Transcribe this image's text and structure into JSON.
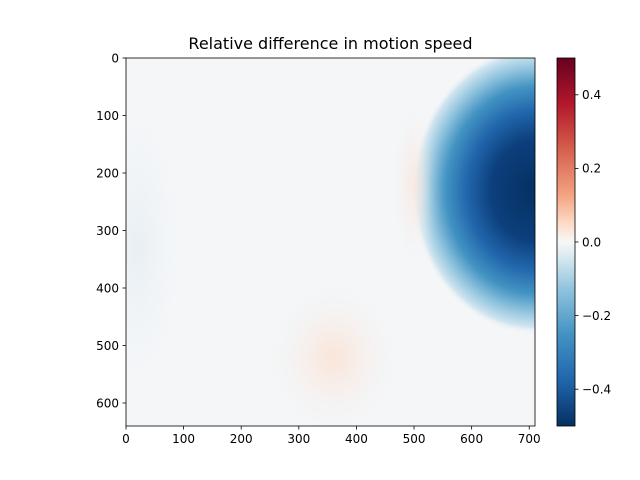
{
  "chart_data": {
    "type": "heatmap",
    "title": "Relative difference in motion speed",
    "xlabel": "",
    "ylabel": "",
    "xlim": [
      0,
      710
    ],
    "ylim": [
      640,
      0
    ],
    "x_ticks": [
      0,
      100,
      200,
      300,
      400,
      500,
      600,
      700
    ],
    "y_ticks": [
      0,
      100,
      200,
      300,
      400,
      500,
      600
    ],
    "colorbar": {
      "label": "",
      "range": [
        -0.5,
        0.5
      ],
      "ticks": [
        0.4,
        0.2,
        0.0,
        -0.2,
        -0.4
      ],
      "tick_labels": [
        "0.4",
        "0.2",
        "0.0",
        "−0.2",
        "−0.4"
      ],
      "colormap": "RdBu_r"
    },
    "features": [
      {
        "description": "strong negative region along right edge",
        "x_center": 710,
        "y_center": 230,
        "x_radius": 215,
        "y_radius": 250,
        "value": -0.5
      },
      {
        "description": "faint positive streak",
        "x_center": 500,
        "y_center": 220,
        "value": 0.04
      },
      {
        "description": "faint positive patch",
        "x_center": 360,
        "y_center": 520,
        "value": 0.02
      },
      {
        "description": "faint negative band on left",
        "x_center": 20,
        "y_center": 330,
        "value": -0.03
      }
    ],
    "background_value": 0.0,
    "grid": false
  }
}
